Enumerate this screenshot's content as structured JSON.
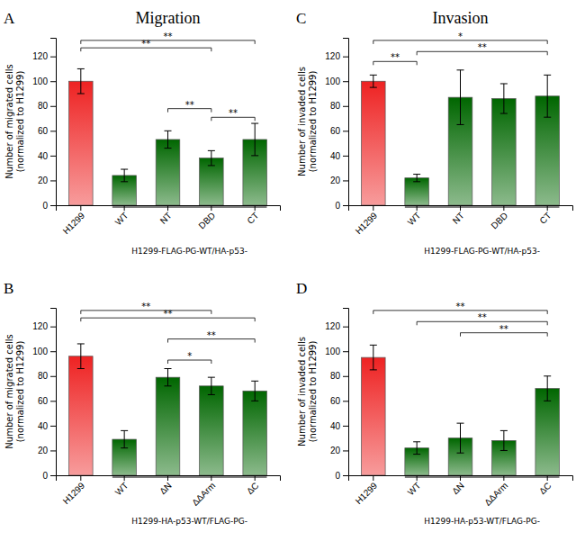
{
  "chart_data": [
    {
      "type": "bar",
      "title": "Migration",
      "categories": [
        "H1299",
        "WT",
        "NT",
        "DBD",
        "CT"
      ],
      "values": [
        100,
        24,
        53,
        38,
        53
      ],
      "errors": [
        10,
        5,
        7,
        6,
        13
      ],
      "colors": [
        "#EE2222",
        "#006600",
        "#006600",
        "#006600",
        "#006600"
      ],
      "ylabel": "Number of migrated cells\n(normalized to H1299)",
      "xlabel": "H1299-FLAG-PG-WT/HA-p53-",
      "ylim": [
        0,
        135
      ],
      "yticks": [
        0,
        20,
        40,
        60,
        80,
        100,
        120
      ],
      "annotations": [
        {
          "text": "A"
        },
        {
          "text": "**",
          "x1": "H1299",
          "x2": "DBD",
          "y": 124
        },
        {
          "text": "**",
          "x1": "H1299",
          "x2": "CT",
          "y": 130
        },
        {
          "text": "**",
          "x1": "NT",
          "x2": "DBD",
          "y": 75
        },
        {
          "text": "**",
          "x1": "DBD",
          "x2": "CT",
          "y": 68
        }
      ]
    },
    {
      "type": "bar",
      "title": "Invasion",
      "categories": [
        "H1299",
        "WT",
        "NT",
        "DBD",
        "CT"
      ],
      "values": [
        100,
        22,
        87,
        86,
        88
      ],
      "errors": [
        5,
        3,
        22,
        12,
        17
      ],
      "colors": [
        "#EE2222",
        "#006600",
        "#006600",
        "#006600",
        "#006600"
      ],
      "ylabel": "Number of invaded cells\n(normalized to H1299)",
      "xlabel": "H1299-FLAG-PG-WT/HA-p53-",
      "ylim": [
        0,
        135
      ],
      "yticks": [
        0,
        20,
        40,
        60,
        80,
        100,
        120
      ],
      "annotations": [
        {
          "text": "C"
        },
        {
          "text": "**",
          "x1": "H1299",
          "x2": "WT",
          "y": 113
        },
        {
          "text": "*",
          "x1": "H1299",
          "x2": "CT",
          "y": 130
        },
        {
          "text": "**",
          "x1": "WT",
          "x2": "CT",
          "y": 121
        }
      ]
    },
    {
      "type": "bar",
      "categories": [
        "H1299",
        "WT",
        "ΔN",
        "ΔΔArm",
        "ΔC"
      ],
      "values": [
        96,
        29,
        79,
        72,
        68
      ],
      "errors": [
        10,
        7,
        7,
        7,
        8
      ],
      "colors": [
        "#EE2222",
        "#006600",
        "#006600",
        "#006600",
        "#006600"
      ],
      "ylabel": "Number of migrated cells\n(normalized to H1299)",
      "xlabel": "H1299-HA-p53-WT/FLAG-PG-",
      "ylim": [
        0,
        135
      ],
      "yticks": [
        0,
        20,
        40,
        60,
        80,
        100,
        120
      ],
      "annotations": [
        {
          "text": "B"
        },
        {
          "text": "**",
          "x1": "H1299",
          "x2": "ΔΔArm",
          "y": 130
        },
        {
          "text": "**",
          "x1": "H1299",
          "x2": "ΔC",
          "y": 124
        },
        {
          "text": "*",
          "x1": "ΔN",
          "x2": "ΔΔArm",
          "y": 90
        },
        {
          "text": "**",
          "x1": "ΔN",
          "x2": "ΔC",
          "y": 107
        }
      ]
    },
    {
      "type": "bar",
      "categories": [
        "H1299",
        "WT",
        "ΔN",
        "ΔΔArm",
        "ΔC"
      ],
      "values": [
        95,
        22,
        30,
        28,
        70
      ],
      "errors": [
        10,
        5,
        12,
        8,
        10
      ],
      "colors": [
        "#EE2222",
        "#006600",
        "#006600",
        "#006600",
        "#006600"
      ],
      "ylabel": "Number of invaded cells\n(normalized to H1299)",
      "xlabel": "H1299-HA-p53-WT/FLAG-PG-",
      "ylim": [
        0,
        135
      ],
      "yticks": [
        0,
        20,
        40,
        60,
        80,
        100,
        120
      ],
      "annotations": [
        {
          "text": "D"
        },
        {
          "text": "**",
          "x1": "H1299",
          "x2": "ΔC",
          "y": 130
        },
        {
          "text": "**",
          "x1": "WT",
          "x2": "ΔC",
          "y": 121
        },
        {
          "text": "**",
          "x1": "ΔN",
          "x2": "ΔC",
          "y": 112
        }
      ]
    }
  ]
}
